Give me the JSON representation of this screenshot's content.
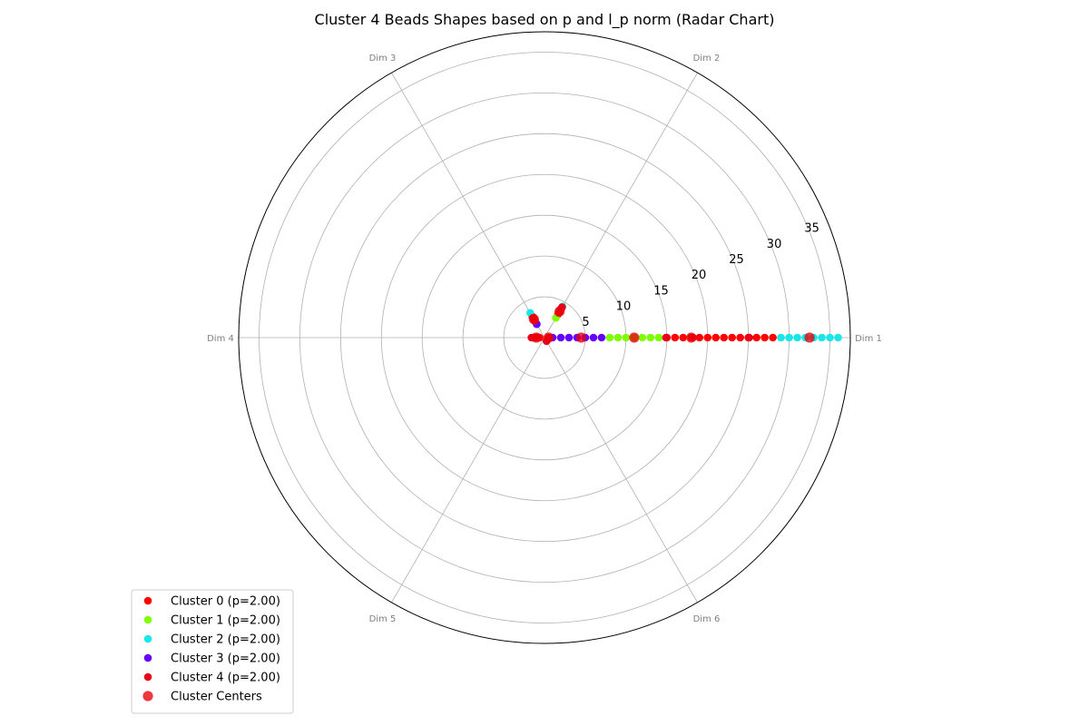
{
  "chart_data": {
    "type": "scatter",
    "projection": "polar",
    "title": "Cluster 4 Beads Shapes based on p and l_p norm (Radar Chart)",
    "axes": [
      "Dim 1",
      "Dim 2",
      "Dim 3",
      "Dim 4",
      "Dim 5",
      "Dim 6"
    ],
    "rlim": [
      0,
      37.5
    ],
    "r_ticks": [
      5,
      10,
      15,
      20,
      25,
      30,
      35
    ],
    "grid": true,
    "legend_position": "bottom-left",
    "series": [
      {
        "name": "Cluster 0 (p=2.00)",
        "color": "#ff0000",
        "points": [
          {
            "dim": 1,
            "r": 15.0
          },
          {
            "dim": 1,
            "r": 16.0
          },
          {
            "dim": 1,
            "r": 17.0
          },
          {
            "dim": 1,
            "r": 18.0
          },
          {
            "dim": 1,
            "r": 19.0
          },
          {
            "dim": 1,
            "r": 20.0
          },
          {
            "dim": 1,
            "r": 21.0
          },
          {
            "dim": 1,
            "r": 22.0
          },
          {
            "dim": 1,
            "r": 23.0
          },
          {
            "dim": 1,
            "r": 24.0
          },
          {
            "dim": 1,
            "r": 25.0
          },
          {
            "dim": 1,
            "r": 26.0
          },
          {
            "dim": 1,
            "r": 27.0
          },
          {
            "dim": 1,
            "r": 28.0
          },
          {
            "dim": 2,
            "r": 3.3
          },
          {
            "dim": 2,
            "r": 3.7
          },
          {
            "dim": 2,
            "r": 4.1
          },
          {
            "dim": 3,
            "r": 2.2
          },
          {
            "dim": 3,
            "r": 2.6
          },
          {
            "dim": 3,
            "r": 3.0
          },
          {
            "dim": 4,
            "r": 0.6
          },
          {
            "dim": 4,
            "r": 1.0
          },
          {
            "dim": 4,
            "r": 1.4
          }
        ]
      },
      {
        "name": "Cluster 1 (p=2.00)",
        "color": "#80ff00",
        "points": [
          {
            "dim": 1,
            "r": 8.0
          },
          {
            "dim": 1,
            "r": 9.0
          },
          {
            "dim": 1,
            "r": 10.0
          },
          {
            "dim": 1,
            "r": 11.0
          },
          {
            "dim": 1,
            "r": 12.0
          },
          {
            "dim": 1,
            "r": 13.0
          },
          {
            "dim": 1,
            "r": 14.0
          },
          {
            "dim": 2,
            "r": 2.8
          },
          {
            "dim": 3,
            "r": 2.1
          }
        ]
      },
      {
        "name": "Cluster 2 (p=2.00)",
        "color": "#19e6e6",
        "points": [
          {
            "dim": 1,
            "r": 29.0
          },
          {
            "dim": 1,
            "r": 30.0
          },
          {
            "dim": 1,
            "r": 31.0
          },
          {
            "dim": 1,
            "r": 32.0
          },
          {
            "dim": 1,
            "r": 33.0
          },
          {
            "dim": 1,
            "r": 34.0
          },
          {
            "dim": 1,
            "r": 35.0
          },
          {
            "dim": 1,
            "r": 36.0
          },
          {
            "dim": 3,
            "r": 3.5
          },
          {
            "dim": 2,
            "r": 4.4
          }
        ]
      },
      {
        "name": "Cluster 3 (p=2.00)",
        "color": "#6600ff",
        "points": [
          {
            "dim": 1,
            "r": 1.0
          },
          {
            "dim": 1,
            "r": 2.0
          },
          {
            "dim": 1,
            "r": 3.0
          },
          {
            "dim": 1,
            "r": 4.0
          },
          {
            "dim": 1,
            "r": 5.0
          },
          {
            "dim": 1,
            "r": 6.0
          },
          {
            "dim": 1,
            "r": 7.0
          },
          {
            "dim": 3,
            "r": 1.9
          }
        ]
      },
      {
        "name": "Cluster 4 (p=2.00)",
        "color": "#e8001a",
        "points": [
          {
            "dim": 1,
            "r": 0.5
          },
          {
            "dim": 1,
            "r": 14.9
          },
          {
            "dim": 1,
            "r": 18.2
          },
          {
            "dim": 1,
            "r": 25.1
          },
          {
            "dim": 2,
            "r": 3.5
          },
          {
            "dim": 2,
            "r": 3.9
          },
          {
            "dim": 2,
            "r": 4.3
          },
          {
            "dim": 3,
            "r": 2.4
          },
          {
            "dim": 3,
            "r": 2.8
          },
          {
            "dim": 4,
            "r": 0.8
          },
          {
            "dim": 4,
            "r": 1.2
          },
          {
            "dim": 4,
            "r": 1.6
          },
          {
            "dim": 6,
            "r": 0.5
          }
        ]
      }
    ],
    "centers": {
      "name": "Cluster Centers",
      "color": "#e8000b",
      "points": [
        {
          "dim": 1,
          "r": 32.5
        },
        {
          "dim": 1,
          "r": 18.0
        },
        {
          "dim": 1,
          "r": 11.0
        },
        {
          "dim": 1,
          "r": 4.5
        },
        {
          "dim": 1,
          "r": 0.5
        },
        {
          "dim": 2,
          "r": 3.7
        },
        {
          "dim": 3,
          "r": 2.6
        },
        {
          "dim": 4,
          "r": 1.0
        }
      ]
    }
  }
}
